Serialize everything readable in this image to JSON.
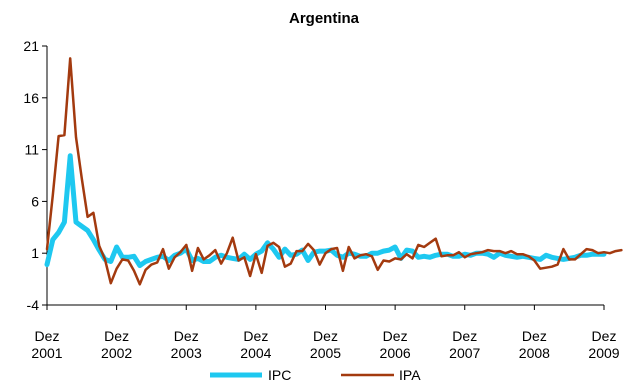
{
  "chart_data": {
    "type": "line",
    "title": "Argentina",
    "xlabel": "",
    "ylabel": "",
    "ylim": [
      -4,
      21
    ],
    "yticks": [
      -4,
      1,
      6,
      11,
      16,
      21
    ],
    "xticks": [
      {
        "line1": "Dez",
        "line2": "2001",
        "month": 0
      },
      {
        "line1": "Dez",
        "line2": "2002",
        "month": 12
      },
      {
        "line1": "Dez",
        "line2": "2003",
        "month": 24
      },
      {
        "line1": "Dez",
        "line2": "2004",
        "month": 36
      },
      {
        "line1": "Dez",
        "line2": "2005",
        "month": 48
      },
      {
        "line1": "Dez",
        "line2": "2006",
        "month": 60
      },
      {
        "line1": "Dez",
        "line2": "2007",
        "month": 72
      },
      {
        "line1": "Dez",
        "line2": "2008",
        "month": 84
      },
      {
        "line1": "Dez",
        "line2": "2009",
        "month": 96
      }
    ],
    "grid": false,
    "legend_position": "bottom",
    "series": [
      {
        "name": "IPC",
        "color": "#1ec8f0",
        "values": [
          -0.1,
          2.3,
          3.0,
          4.0,
          10.4,
          4.0,
          3.6,
          3.2,
          2.3,
          1.3,
          0.4,
          0.2,
          1.6,
          0.6,
          0.6,
          0.7,
          -0.2,
          0.2,
          0.4,
          0.6,
          0.7,
          0.3,
          0.8,
          1.0,
          1.4,
          0.3,
          0.5,
          0.2,
          0.2,
          0.6,
          0.8,
          0.6,
          0.5,
          0.4,
          0.9,
          0.4,
          0.9,
          1.2,
          2.0,
          1.4,
          0.6,
          1.4,
          0.8,
          0.9,
          1.3,
          0.3,
          1.1,
          1.2,
          1.2,
          1.3,
          0.8,
          0.6,
          1.0,
          0.9,
          0.7,
          0.7,
          1.0,
          1.0,
          1.2,
          1.3,
          1.6,
          0.5,
          1.3,
          1.2,
          0.6,
          0.7,
          0.6,
          0.8,
          0.9,
          0.9,
          0.7,
          0.7,
          0.9,
          0.8,
          1.0,
          1.0,
          0.9,
          0.6,
          1.0,
          0.8,
          0.7,
          0.6,
          0.7,
          0.6,
          0.5,
          0.4,
          0.8,
          0.6,
          0.5,
          0.4,
          0.5,
          0.6,
          0.8,
          0.8,
          0.9,
          0.9,
          0.9
        ]
      },
      {
        "name": "IPA",
        "color": "#a33a0f",
        "values": [
          1.4,
          6.6,
          12.3,
          12.4,
          19.8,
          12.2,
          8.2,
          4.5,
          4.9,
          1.7,
          0.4,
          -1.9,
          -0.5,
          0.4,
          0.3,
          -0.7,
          -2.0,
          -0.6,
          -0.1,
          0.1,
          1.4,
          -0.5,
          0.6,
          1.1,
          1.8,
          -0.7,
          1.5,
          0.4,
          0.8,
          1.3,
          0.0,
          1.0,
          2.5,
          0.3,
          0.6,
          -1.2,
          0.9,
          -0.9,
          1.7,
          2.0,
          1.6,
          -0.3,
          0.0,
          1.2,
          1.2,
          1.9,
          1.3,
          -0.1,
          1.0,
          1.4,
          1.5,
          -0.7,
          1.6,
          0.5,
          0.8,
          0.9,
          0.7,
          -0.6,
          0.3,
          0.2,
          0.5,
          0.4,
          0.9,
          0.5,
          1.8,
          1.6,
          2.0,
          2.4,
          0.7,
          0.8,
          0.8,
          1.1,
          0.6,
          0.9,
          1.0,
          1.1,
          1.3,
          1.2,
          1.2,
          1.0,
          1.2,
          0.9,
          0.9,
          0.7,
          0.3,
          -0.5,
          -0.4,
          -0.3,
          -0.1,
          1.4,
          0.4,
          0.4,
          0.9,
          1.4,
          1.3,
          1.0,
          1.1,
          1.0,
          1.2,
          1.3
        ]
      }
    ]
  }
}
